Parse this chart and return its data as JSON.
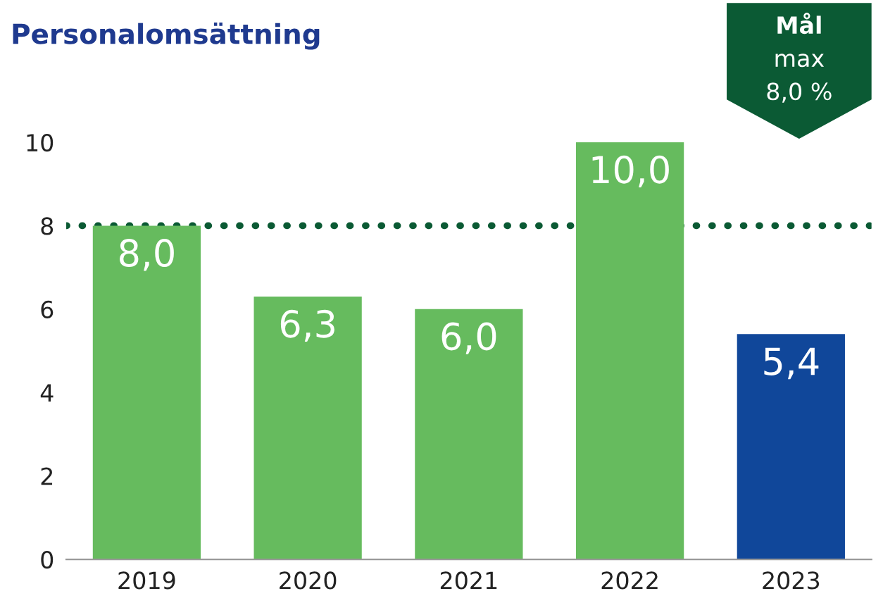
{
  "chart_data": {
    "type": "bar",
    "title": "Personalomsättning",
    "categories": [
      "2019",
      "2020",
      "2021",
      "2022",
      "2023"
    ],
    "values": [
      8.0,
      6.3,
      6.0,
      10.0,
      5.4
    ],
    "colors": [
      "#66bb5e",
      "#66bb5e",
      "#66bb5e",
      "#66bb5e",
      "#10479a"
    ],
    "value_labels": [
      "8,0",
      "6,3",
      "6,0",
      "10,0",
      "5,4"
    ],
    "ylim": [
      0,
      10
    ],
    "yticks": [
      0,
      2,
      4,
      6,
      8,
      10
    ],
    "grid": false,
    "annotations": [
      "Mål\nmax\n8,0 %"
    ],
    "ref_lines": [
      {
        "axis": "y",
        "value": 8,
        "color": "#0b5a34",
        "line_style": "dotted"
      }
    ]
  }
}
